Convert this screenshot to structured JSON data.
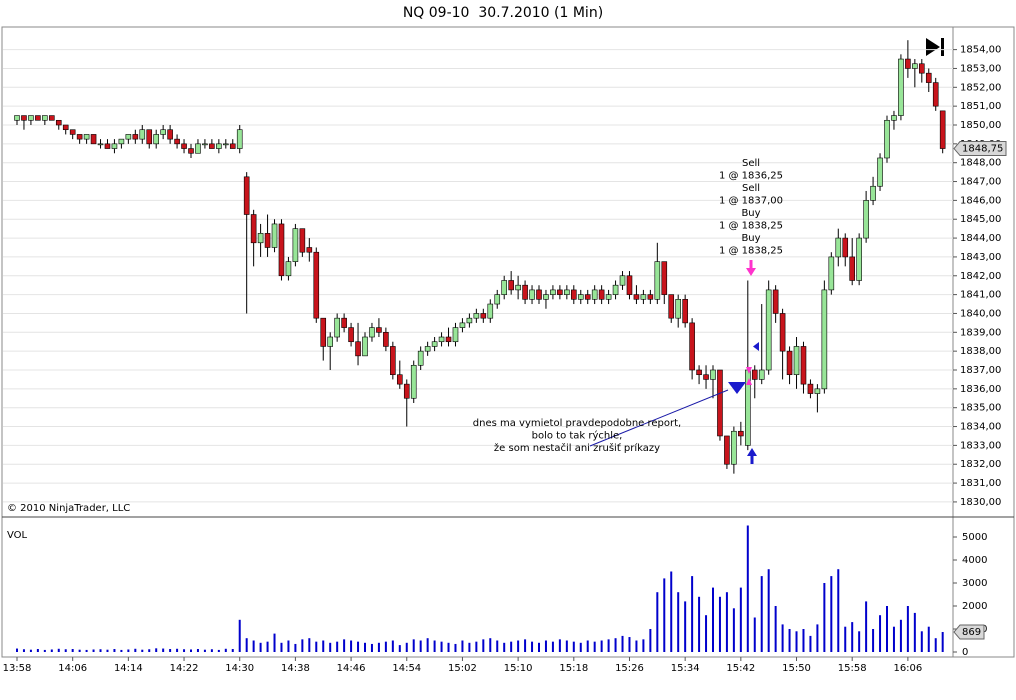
{
  "chart_data": {
    "type": "candlestick",
    "title": "NQ 09-10  30.7.2010 (1 Min)",
    "x": [
      "13:58",
      "13:59",
      "14:00",
      "14:01",
      "14:02",
      "14:03",
      "14:04",
      "14:05",
      "14:06",
      "14:07",
      "14:08",
      "14:09",
      "14:10",
      "14:11",
      "14:12",
      "14:13",
      "14:14",
      "14:15",
      "14:16",
      "14:17",
      "14:18",
      "14:19",
      "14:20",
      "14:21",
      "14:22",
      "14:23",
      "14:24",
      "14:25",
      "14:26",
      "14:27",
      "14:28",
      "14:29",
      "14:30",
      "14:31",
      "14:32",
      "14:33",
      "14:34",
      "14:35",
      "14:36",
      "14:37",
      "14:38",
      "14:39",
      "14:40",
      "14:41",
      "14:42",
      "14:43",
      "14:44",
      "14:45",
      "14:46",
      "14:47",
      "14:48",
      "14:49",
      "14:50",
      "14:51",
      "14:52",
      "14:53",
      "14:54",
      "14:55",
      "14:56",
      "14:57",
      "14:58",
      "14:59",
      "15:00",
      "15:01",
      "15:02",
      "15:03",
      "15:04",
      "15:05",
      "15:06",
      "15:07",
      "15:08",
      "15:09",
      "15:10",
      "15:11",
      "15:12",
      "15:13",
      "15:14",
      "15:15",
      "15:16",
      "15:17",
      "15:18",
      "15:19",
      "15:20",
      "15:21",
      "15:22",
      "15:23",
      "15:24",
      "15:25",
      "15:26",
      "15:27",
      "15:28",
      "15:29",
      "15:30",
      "15:31",
      "15:32",
      "15:33",
      "15:34",
      "15:35",
      "15:36",
      "15:37",
      "15:38",
      "15:39",
      "15:40",
      "15:41",
      "15:42",
      "15:43",
      "15:44",
      "15:45",
      "15:46",
      "15:47",
      "15:48",
      "15:49",
      "15:50",
      "15:51",
      "15:52",
      "15:53",
      "15:54",
      "15:55",
      "15:56",
      "15:57",
      "15:58",
      "15:59",
      "16:00",
      "16:01",
      "16:02",
      "16:03",
      "16:04",
      "16:05",
      "16:06",
      "16:07",
      "16:08",
      "16:09",
      "16:10",
      "16:11"
    ],
    "xticks": [
      "13:58",
      "14:06",
      "14:14",
      "14:22",
      "14:30",
      "14:38",
      "14:46",
      "14:54",
      "15:02",
      "15:10",
      "15:18",
      "15:26",
      "15:34",
      "15:42",
      "15:50",
      "15:58",
      "16:06"
    ],
    "ohlc": [
      [
        1850.25,
        1850.5,
        1850.0,
        1850.5
      ],
      [
        1850.5,
        1850.5,
        1849.75,
        1850.25
      ],
      [
        1850.25,
        1850.5,
        1850.0,
        1850.5
      ],
      [
        1850.5,
        1850.5,
        1850.25,
        1850.25
      ],
      [
        1850.25,
        1850.5,
        1850.0,
        1850.5
      ],
      [
        1850.5,
        1850.5,
        1850.25,
        1850.25
      ],
      [
        1850.25,
        1850.25,
        1849.75,
        1850.0
      ],
      [
        1850.0,
        1850.0,
        1849.5,
        1849.75
      ],
      [
        1849.75,
        1849.75,
        1849.25,
        1849.5
      ],
      [
        1849.5,
        1849.5,
        1849.0,
        1849.25
      ],
      [
        1849.25,
        1849.5,
        1849.0,
        1849.5
      ],
      [
        1849.5,
        1849.5,
        1849.0,
        1849.0
      ],
      [
        1849.0,
        1849.25,
        1848.75,
        1849.0
      ],
      [
        1849.0,
        1849.25,
        1848.75,
        1848.75
      ],
      [
        1848.75,
        1849.25,
        1848.5,
        1849.0
      ],
      [
        1849.0,
        1849.25,
        1848.75,
        1849.25
      ],
      [
        1849.25,
        1849.5,
        1849.0,
        1849.5
      ],
      [
        1849.5,
        1849.75,
        1849.0,
        1849.25
      ],
      [
        1849.25,
        1850.0,
        1849.0,
        1849.75
      ],
      [
        1849.75,
        1849.75,
        1848.75,
        1849.0
      ],
      [
        1849.0,
        1849.75,
        1848.75,
        1849.5
      ],
      [
        1849.5,
        1850.0,
        1849.25,
        1849.75
      ],
      [
        1849.75,
        1850.0,
        1849.0,
        1849.25
      ],
      [
        1849.25,
        1849.5,
        1848.75,
        1849.0
      ],
      [
        1849.0,
        1849.25,
        1848.5,
        1848.75
      ],
      [
        1848.75,
        1849.0,
        1848.25,
        1848.5
      ],
      [
        1848.5,
        1849.25,
        1848.5,
        1849.0
      ],
      [
        1849.0,
        1849.25,
        1848.75,
        1849.0
      ],
      [
        1849.0,
        1849.25,
        1848.75,
        1848.75
      ],
      [
        1848.75,
        1849.25,
        1848.5,
        1849.0
      ],
      [
        1849.0,
        1849.25,
        1848.75,
        1849.0
      ],
      [
        1849.0,
        1849.25,
        1848.75,
        1848.75
      ],
      [
        1848.75,
        1850.0,
        1848.5,
        1849.75
      ],
      [
        1847.25,
        1847.5,
        1840.0,
        1845.25
      ],
      [
        1845.25,
        1845.5,
        1842.5,
        1843.75
      ],
      [
        1843.75,
        1844.75,
        1843.0,
        1844.25
      ],
      [
        1844.25,
        1845.25,
        1843.0,
        1843.5
      ],
      [
        1843.5,
        1845.0,
        1843.25,
        1844.75
      ],
      [
        1844.75,
        1845.0,
        1841.75,
        1842.0
      ],
      [
        1842.0,
        1843.0,
        1841.75,
        1842.75
      ],
      [
        1842.75,
        1844.75,
        1842.5,
        1844.5
      ],
      [
        1844.5,
        1844.5,
        1843.0,
        1843.25
      ],
      [
        1843.5,
        1844.0,
        1842.75,
        1843.25
      ],
      [
        1843.25,
        1843.5,
        1839.5,
        1839.75
      ],
      [
        1839.75,
        1839.75,
        1837.5,
        1838.25
      ],
      [
        1838.25,
        1839.0,
        1837.0,
        1838.75
      ],
      [
        1838.75,
        1840.0,
        1838.5,
        1839.75
      ],
      [
        1839.75,
        1840.0,
        1839.0,
        1839.25
      ],
      [
        1839.25,
        1839.5,
        1838.25,
        1838.5
      ],
      [
        1838.5,
        1839.5,
        1837.25,
        1837.75
      ],
      [
        1837.75,
        1839.0,
        1837.75,
        1838.75
      ],
      [
        1838.75,
        1839.5,
        1838.5,
        1839.25
      ],
      [
        1839.25,
        1839.75,
        1838.75,
        1839.0
      ],
      [
        1839.0,
        1839.25,
        1838.0,
        1838.25
      ],
      [
        1838.25,
        1838.5,
        1836.5,
        1836.75
      ],
      [
        1836.75,
        1837.5,
        1836.0,
        1836.25
      ],
      [
        1836.25,
        1836.5,
        1834.0,
        1835.5
      ],
      [
        1835.5,
        1837.5,
        1835.25,
        1837.25
      ],
      [
        1837.25,
        1838.25,
        1837.0,
        1838.0
      ],
      [
        1838.0,
        1838.5,
        1837.75,
        1838.25
      ],
      [
        1838.25,
        1838.75,
        1838.0,
        1838.5
      ],
      [
        1838.5,
        1839.0,
        1838.25,
        1838.75
      ],
      [
        1838.75,
        1839.25,
        1838.25,
        1838.5
      ],
      [
        1838.5,
        1839.5,
        1838.25,
        1839.25
      ],
      [
        1839.25,
        1839.75,
        1839.0,
        1839.5
      ],
      [
        1839.5,
        1840.0,
        1839.25,
        1839.75
      ],
      [
        1839.75,
        1840.25,
        1839.5,
        1840.0
      ],
      [
        1840.0,
        1840.25,
        1839.5,
        1839.75
      ],
      [
        1839.75,
        1840.75,
        1839.5,
        1840.5
      ],
      [
        1840.5,
        1841.25,
        1840.25,
        1841.0
      ],
      [
        1841.0,
        1842.0,
        1840.75,
        1841.75
      ],
      [
        1841.75,
        1842.25,
        1841.0,
        1841.25
      ],
      [
        1841.25,
        1842.0,
        1840.75,
        1841.5
      ],
      [
        1841.5,
        1841.75,
        1840.5,
        1840.75
      ],
      [
        1840.75,
        1841.5,
        1840.5,
        1841.25
      ],
      [
        1841.25,
        1841.5,
        1840.5,
        1840.75
      ],
      [
        1840.75,
        1841.25,
        1840.25,
        1841.0
      ],
      [
        1841.0,
        1841.5,
        1840.75,
        1841.25
      ],
      [
        1841.25,
        1841.5,
        1840.75,
        1841.0
      ],
      [
        1841.0,
        1841.5,
        1840.75,
        1841.25
      ],
      [
        1841.25,
        1841.5,
        1840.5,
        1840.75
      ],
      [
        1840.75,
        1841.25,
        1840.5,
        1841.0
      ],
      [
        1841.0,
        1841.25,
        1840.5,
        1840.75
      ],
      [
        1840.75,
        1841.5,
        1840.5,
        1841.25
      ],
      [
        1841.25,
        1841.5,
        1840.5,
        1840.75
      ],
      [
        1840.75,
        1841.25,
        1840.5,
        1841.0
      ],
      [
        1841.0,
        1841.75,
        1840.75,
        1841.5
      ],
      [
        1841.5,
        1842.25,
        1841.25,
        1842.0
      ],
      [
        1842.0,
        1842.25,
        1840.75,
        1841.0
      ],
      [
        1841.0,
        1841.5,
        1840.5,
        1840.75
      ],
      [
        1840.75,
        1841.25,
        1840.5,
        1841.0
      ],
      [
        1841.0,
        1841.25,
        1840.5,
        1840.75
      ],
      [
        1840.75,
        1843.75,
        1840.5,
        1842.75
      ],
      [
        1842.75,
        1842.75,
        1840.5,
        1841.0
      ],
      [
        1841.0,
        1841.0,
        1839.5,
        1839.75
      ],
      [
        1839.75,
        1841.0,
        1839.25,
        1840.75
      ],
      [
        1840.75,
        1841.0,
        1839.25,
        1839.5
      ],
      [
        1839.5,
        1839.75,
        1836.5,
        1837.0
      ],
      [
        1837.0,
        1837.25,
        1836.25,
        1836.75
      ],
      [
        1836.75,
        1837.25,
        1836.0,
        1836.5
      ],
      [
        1836.5,
        1837.25,
        1835.5,
        1837.0
      ],
      [
        1837.0,
        1837.0,
        1833.25,
        1833.5
      ],
      [
        1833.5,
        1833.5,
        1831.75,
        1832.0
      ],
      [
        1832.0,
        1834.0,
        1831.5,
        1833.75
      ],
      [
        1833.75,
        1834.25,
        1833.0,
        1833.5
      ],
      [
        1833.0,
        1841.75,
        1832.75,
        1837.0
      ],
      [
        1837.0,
        1837.25,
        1835.5,
        1836.5
      ],
      [
        1836.5,
        1840.5,
        1836.25,
        1837.0
      ],
      [
        1837.0,
        1841.75,
        1836.75,
        1841.25
      ],
      [
        1841.25,
        1841.5,
        1839.5,
        1840.0
      ],
      [
        1840.0,
        1840.25,
        1836.5,
        1838.0
      ],
      [
        1838.0,
        1838.25,
        1836.25,
        1836.75
      ],
      [
        1836.75,
        1838.75,
        1836.0,
        1838.25
      ],
      [
        1838.25,
        1838.5,
        1835.75,
        1836.25
      ],
      [
        1836.25,
        1836.5,
        1835.5,
        1835.75
      ],
      [
        1835.75,
        1836.25,
        1834.75,
        1836.0
      ],
      [
        1836.0,
        1841.75,
        1835.75,
        1841.25
      ],
      [
        1841.25,
        1843.25,
        1841.0,
        1843.0
      ],
      [
        1843.0,
        1844.5,
        1842.5,
        1844.0
      ],
      [
        1844.0,
        1844.25,
        1842.5,
        1843.0
      ],
      [
        1843.0,
        1844.0,
        1841.5,
        1841.75
      ],
      [
        1841.75,
        1844.25,
        1841.5,
        1844.0
      ],
      [
        1844.0,
        1846.5,
        1843.75,
        1846.0
      ],
      [
        1846.0,
        1847.25,
        1845.75,
        1846.75
      ],
      [
        1846.75,
        1848.5,
        1846.5,
        1848.25
      ],
      [
        1848.25,
        1850.5,
        1848.0,
        1850.25
      ],
      [
        1850.25,
        1850.75,
        1849.75,
        1850.5
      ],
      [
        1850.5,
        1853.75,
        1850.25,
        1853.5
      ],
      [
        1853.5,
        1854.5,
        1852.5,
        1853.0
      ],
      [
        1853.0,
        1853.5,
        1852.0,
        1853.25
      ],
      [
        1853.25,
        1853.5,
        1852.25,
        1852.75
      ],
      [
        1852.75,
        1853.0,
        1851.75,
        1852.25
      ],
      [
        1852.25,
        1852.5,
        1850.75,
        1851.0
      ],
      [
        1850.75,
        1850.75,
        1848.5,
        1848.75
      ]
    ],
    "up_color": "#98e598",
    "down_color": "#c8141c",
    "ylim": [
      1829.2,
      1855.2
    ],
    "yticks": [
      {
        "value": 1830,
        "label": "1830,00"
      },
      {
        "value": 1831,
        "label": "1831,00"
      },
      {
        "value": 1832,
        "label": "1832,00"
      },
      {
        "value": 1833,
        "label": "1833,00"
      },
      {
        "value": 1834,
        "label": "1834,00"
      },
      {
        "value": 1835,
        "label": "1835,00"
      },
      {
        "value": 1836,
        "label": "1836,00"
      },
      {
        "value": 1837,
        "label": "1837,00"
      },
      {
        "value": 1838,
        "label": "1838,00"
      },
      {
        "value": 1839,
        "label": "1839,00"
      },
      {
        "value": 1840,
        "label": "1840,00"
      },
      {
        "value": 1841,
        "label": "1841,00"
      },
      {
        "value": 1842,
        "label": "1842,00"
      },
      {
        "value": 1843,
        "label": "1843,00"
      },
      {
        "value": 1844,
        "label": "1844,00"
      },
      {
        "value": 1845,
        "label": "1845,00"
      },
      {
        "value": 1846,
        "label": "1846,00"
      },
      {
        "value": 1847,
        "label": "1847,00"
      },
      {
        "value": 1848,
        "label": "1848,00"
      },
      {
        "value": 1849,
        "label": "1849,00"
      },
      {
        "value": 1850,
        "label": "1850,00"
      },
      {
        "value": 1851,
        "label": "1851,00"
      },
      {
        "value": 1852,
        "label": "1852,00"
      },
      {
        "value": 1853,
        "label": "1853,00"
      },
      {
        "value": 1854,
        "label": "1854,00"
      }
    ],
    "grid": true,
    "last_price": {
      "value": 1848.75,
      "label": "1848,75"
    },
    "copyright": "© 2010 NinjaTrader, LLC",
    "volume": {
      "label": "VOL",
      "color": "#0000cc",
      "values": [
        150,
        120,
        100,
        130,
        90,
        110,
        140,
        120,
        130,
        100,
        90,
        110,
        120,
        100,
        130,
        90,
        110,
        140,
        100,
        120,
        160,
        150,
        130,
        140,
        120,
        110,
        130,
        100,
        120,
        90,
        140,
        130,
        1400,
        600,
        500,
        400,
        450,
        800,
        400,
        500,
        350,
        550,
        600,
        450,
        500,
        400,
        450,
        550,
        500,
        450,
        400,
        350,
        400,
        450,
        500,
        300,
        400,
        550,
        500,
        600,
        500,
        450,
        400,
        350,
        500,
        400,
        450,
        550,
        600,
        500,
        400,
        450,
        500,
        550,
        450,
        400,
        500,
        450,
        550,
        500,
        450,
        400,
        500,
        450,
        500,
        550,
        600,
        700,
        650,
        500,
        550,
        1000,
        2600,
        3200,
        3500,
        2600,
        2200,
        3300,
        2400,
        1600,
        2800,
        2400,
        2600,
        1900,
        2800,
        5500,
        1500,
        3300,
        3600,
        2000,
        1200,
        1000,
        900,
        1000,
        700,
        1200,
        3000,
        3300,
        3600,
        1100,
        1300,
        900,
        2200,
        1000,
        1600,
        2000,
        1100,
        1400,
        2000,
        1700,
        900,
        1100,
        600,
        869
      ],
      "ylim": [
        0,
        5500
      ],
      "yticks": [
        0,
        1000,
        2000,
        3000,
        4000,
        5000
      ]
    },
    "orders": [
      {
        "side": "Sell",
        "text": "1 @ 1836,25"
      },
      {
        "side": "Sell",
        "text": "1 @ 1837,00"
      },
      {
        "side": "Buy",
        "text": "1 @ 1838,25"
      },
      {
        "side": "Buy",
        "text": "1 @ 1838,25"
      }
    ],
    "comment": [
      "dnes ma vymietol pravdepodobne report,",
      "bolo to tak rýchle,",
      "že som nestačil ani zrušiť príkazy"
    ]
  }
}
